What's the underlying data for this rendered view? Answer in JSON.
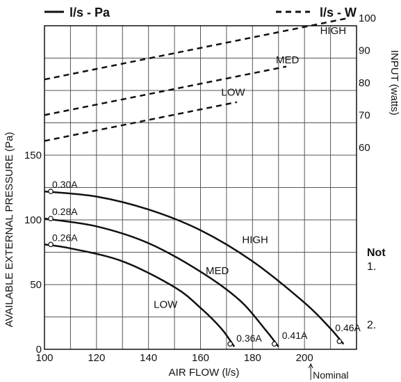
{
  "legend": {
    "solid_label": "l/s - Pa",
    "dashed_label": "l/s - W"
  },
  "notes": {
    "title": "Not",
    "item1_num": "1.",
    "item2_num": "2."
  },
  "chart_data": {
    "type": "line",
    "xlabel": "AIR FLOW (l/s)",
    "ylabel": "AVAILABLE EXTERNAL PRESSURE (Pa)",
    "y2label": "INPUT (watts)",
    "xlim": [
      100,
      220
    ],
    "xticks": [
      100,
      120,
      140,
      160,
      180,
      200
    ],
    "x_annotation": {
      "x": 200,
      "label": "Nominal"
    },
    "ylim": [
      0,
      250
    ],
    "yticks": [
      0,
      50,
      100,
      150
    ],
    "y2ticks": [
      60,
      70,
      80,
      90,
      100
    ],
    "grid": true,
    "pressure_series": [
      {
        "name": "HIGH",
        "start_label": "0.30A",
        "end_label": "0.46A",
        "x": [
          100,
          120,
          140,
          160,
          180,
          200,
          210,
          215
        ],
        "y": [
          122,
          118,
          108,
          92,
          68,
          36,
          16,
          4
        ]
      },
      {
        "name": "MED",
        "start_label": "0.28A",
        "end_label": "0.41A",
        "x": [
          100,
          120,
          140,
          160,
          175,
          185,
          190
        ],
        "y": [
          101,
          95,
          82,
          60,
          38,
          15,
          2
        ]
      },
      {
        "name": "LOW",
        "start_label": "0.26A",
        "end_label": "0.36A",
        "x": [
          100,
          110,
          130,
          150,
          160,
          168,
          173
        ],
        "y": [
          81,
          78,
          68,
          48,
          32,
          16,
          2
        ]
      }
    ],
    "input_series": [
      {
        "name": "HIGH",
        "x": [
          100,
          217
        ],
        "y": [
          81,
          100
        ]
      },
      {
        "name": "MED",
        "x": [
          100,
          193
        ],
        "y": [
          70,
          85
        ]
      },
      {
        "name": "LOW",
        "x": [
          100,
          174
        ],
        "y": [
          62,
          74
        ]
      }
    ]
  }
}
